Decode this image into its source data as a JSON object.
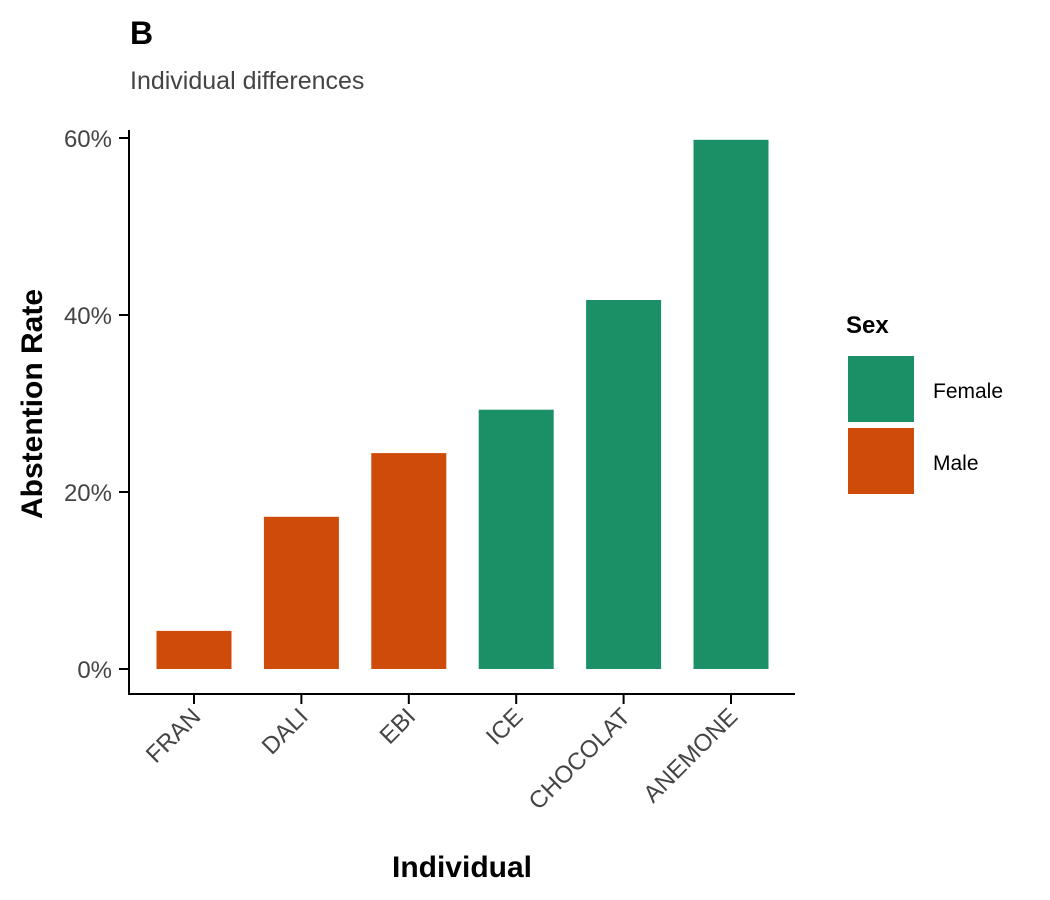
{
  "chart_data": {
    "type": "bar",
    "title": "B",
    "subtitle": "Individual differences",
    "xlabel": "Individual",
    "ylabel": "Abstention Rate",
    "categories": [
      "FRAN",
      "DALI",
      "EBI",
      "ICE",
      "CHOCOLAT",
      "ANEMONE"
    ],
    "values": [
      0.043,
      0.172,
      0.244,
      0.293,
      0.417,
      0.598
    ],
    "groups": [
      "Male",
      "Male",
      "Male",
      "Female",
      "Female",
      "Female"
    ],
    "ylim": [
      0,
      0.6
    ],
    "yticks": [
      0,
      0.2,
      0.4,
      0.6
    ],
    "ytick_labels": [
      "0%",
      "20%",
      "40%",
      "60%"
    ],
    "grid": false,
    "legend": {
      "title": "Sex",
      "placement": "right",
      "items": [
        {
          "label": "Female",
          "color": "#1b9066"
        },
        {
          "label": "Male",
          "color": "#cf4b09"
        }
      ]
    }
  }
}
